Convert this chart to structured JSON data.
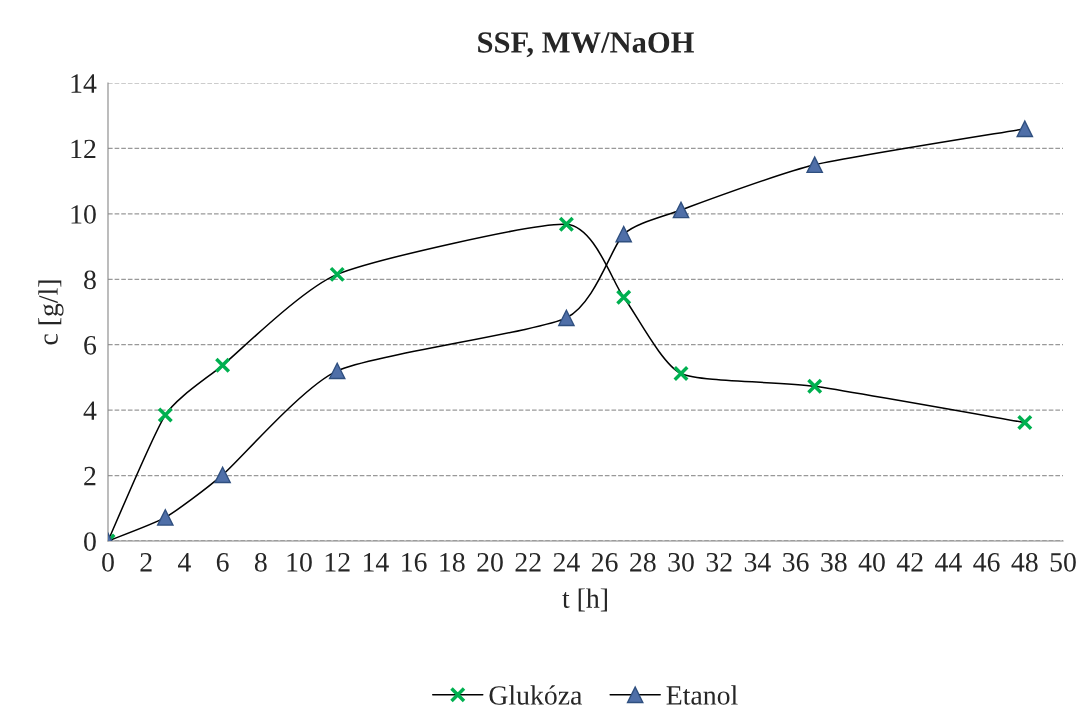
{
  "chart_data": {
    "type": "line",
    "title": "SSF, MW/NaOH",
    "xlabel": "t [h]",
    "ylabel": "c [g/l]",
    "x": [
      0,
      3,
      6,
      12,
      24,
      27,
      30,
      37,
      48
    ],
    "series": [
      {
        "name": "Glukóza",
        "color": "#00b050",
        "marker": "cross",
        "values": [
          0,
          3.85,
          5.37,
          8.15,
          9.68,
          7.45,
          5.12,
          4.73,
          3.62
        ]
      },
      {
        "name": "Etanol",
        "color": "#4f6fa8",
        "marker": "triangle",
        "values": [
          0,
          0.72,
          2.02,
          5.2,
          6.82,
          9.38,
          10.12,
          11.5,
          12.6
        ]
      }
    ],
    "xlim": [
      0,
      50
    ],
    "xticks": [
      0,
      2,
      4,
      6,
      8,
      10,
      12,
      14,
      16,
      18,
      20,
      22,
      24,
      26,
      28,
      30,
      32,
      34,
      36,
      38,
      40,
      42,
      44,
      46,
      48,
      50
    ],
    "ylim": [
      0,
      14
    ],
    "yticks": [
      0,
      2,
      4,
      6,
      8,
      10,
      12,
      14
    ],
    "grid": "y",
    "legend": "bottom",
    "line_style": "solid"
  }
}
